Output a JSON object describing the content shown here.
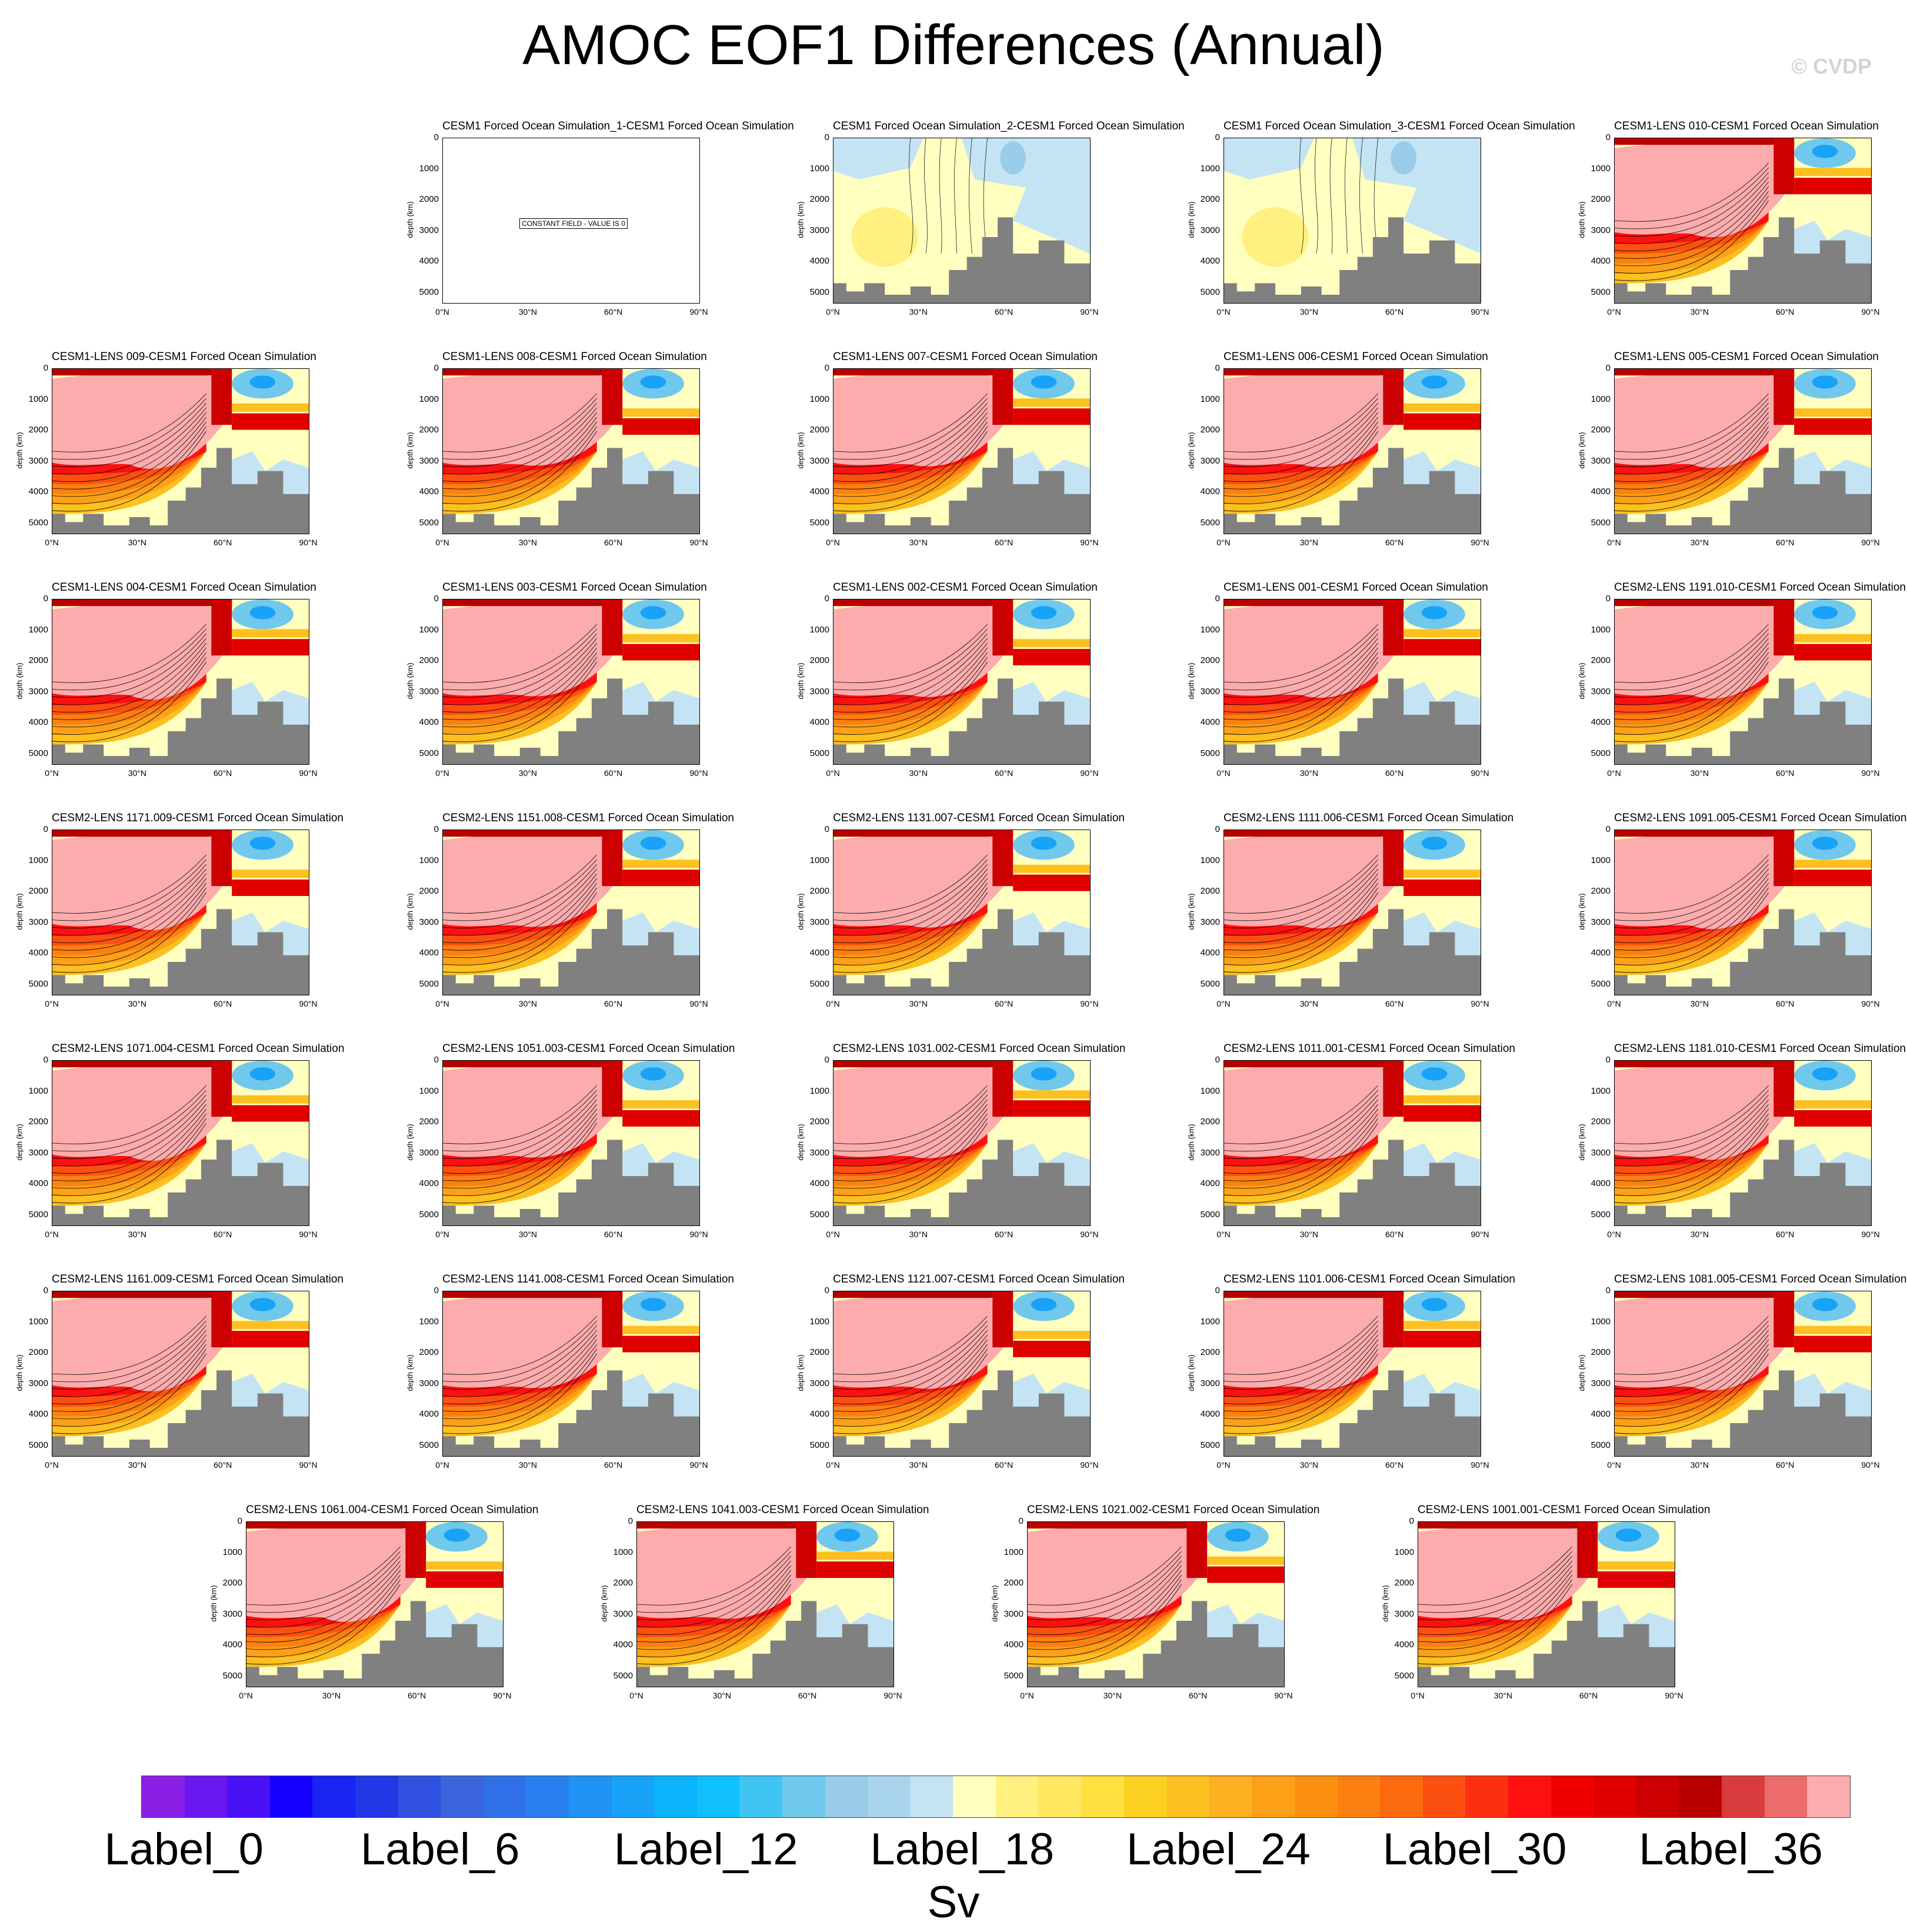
{
  "title": "AMOC EOF1 Differences (Annual)",
  "watermark": "© CVDP",
  "chart_data": {
    "type": "contour-panels",
    "ylabel": "depth (km)",
    "y_ticks": [
      "0",
      "1000",
      "2000",
      "3000",
      "4000",
      "5000"
    ],
    "x_ticks": [
      "0°N",
      "30°N",
      "60°N",
      "90°N"
    ],
    "constant_field_note": "CONSTANT FIELD - VALUE IS 0",
    "panels": [
      {
        "title": "CESM1 Forced Ocean Simulation_1-CESM1 Forced Ocean Simulation",
        "kind": "constant"
      },
      {
        "title": "CESM1 Forced Ocean Simulation_2-CESM1 Forced Ocean Simulation",
        "kind": "weak"
      },
      {
        "title": "CESM1 Forced Ocean Simulation_3-CESM1 Forced Ocean Simulation",
        "kind": "weak"
      },
      {
        "title": "CESM1-LENS 010-CESM1 Forced Ocean Simulation",
        "kind": "strong"
      },
      {
        "title": "CESM1-LENS 009-CESM1 Forced Ocean Simulation",
        "kind": "strong"
      },
      {
        "title": "CESM1-LENS 008-CESM1 Forced Ocean Simulation",
        "kind": "strong"
      },
      {
        "title": "CESM1-LENS 007-CESM1 Forced Ocean Simulation",
        "kind": "strong"
      },
      {
        "title": "CESM1-LENS 006-CESM1 Forced Ocean Simulation",
        "kind": "strong"
      },
      {
        "title": "CESM1-LENS 005-CESM1 Forced Ocean Simulation",
        "kind": "strong"
      },
      {
        "title": "CESM1-LENS 004-CESM1 Forced Ocean Simulation",
        "kind": "strong"
      },
      {
        "title": "CESM1-LENS 003-CESM1 Forced Ocean Simulation",
        "kind": "strong"
      },
      {
        "title": "CESM1-LENS 002-CESM1 Forced Ocean Simulation",
        "kind": "strong"
      },
      {
        "title": "CESM1-LENS 001-CESM1 Forced Ocean Simulation",
        "kind": "strong"
      },
      {
        "title": "CESM2-LENS 1191.010-CESM1 Forced Ocean Simulation",
        "kind": "strong"
      },
      {
        "title": "CESM2-LENS 1171.009-CESM1 Forced Ocean Simulation",
        "kind": "strong"
      },
      {
        "title": "CESM2-LENS 1151.008-CESM1 Forced Ocean Simulation",
        "kind": "strong"
      },
      {
        "title": "CESM2-LENS 1131.007-CESM1 Forced Ocean Simulation",
        "kind": "strong"
      },
      {
        "title": "CESM2-LENS 1111.006-CESM1 Forced Ocean Simulation",
        "kind": "strong"
      },
      {
        "title": "CESM2-LENS 1091.005-CESM1 Forced Ocean Simulation",
        "kind": "strong"
      },
      {
        "title": "CESM2-LENS 1071.004-CESM1 Forced Ocean Simulation",
        "kind": "strong"
      },
      {
        "title": "CESM2-LENS 1051.003-CESM1 Forced Ocean Simulation",
        "kind": "strong"
      },
      {
        "title": "CESM2-LENS 1031.002-CESM1 Forced Ocean Simulation",
        "kind": "strong"
      },
      {
        "title": "CESM2-LENS 1011.001-CESM1 Forced Ocean Simulation",
        "kind": "strong"
      },
      {
        "title": "CESM2-LENS 1181.010-CESM1 Forced Ocean Simulation",
        "kind": "strong"
      },
      {
        "title": "CESM2-LENS 1161.009-CESM1 Forced Ocean Simulation",
        "kind": "strong"
      },
      {
        "title": "CESM2-LENS 1141.008-CESM1 Forced Ocean Simulation",
        "kind": "strong"
      },
      {
        "title": "CESM2-LENS 1121.007-CESM1 Forced Ocean Simulation",
        "kind": "strong"
      },
      {
        "title": "CESM2-LENS 1101.006-CESM1 Forced Ocean Simulation",
        "kind": "strong"
      },
      {
        "title": "CESM2-LENS 1081.005-CESM1 Forced Ocean Simulation",
        "kind": "strong"
      },
      {
        "title": "CESM2-LENS 1061.004-CESM1 Forced Ocean Simulation",
        "kind": "strong"
      },
      {
        "title": "CESM2-LENS 1041.003-CESM1 Forced Ocean Simulation",
        "kind": "strong"
      },
      {
        "title": "CESM2-LENS 1021.002-CESM1 Forced Ocean Simulation",
        "kind": "strong"
      },
      {
        "title": "CESM2-LENS 1001.001-CESM1 Forced Ocean Simulation",
        "kind": "strong"
      }
    ],
    "colorbar": {
      "units": "Sv",
      "labels": [
        "Label_0",
        "Label_6",
        "Label_12",
        "Label_18",
        "Label_24",
        "Label_30",
        "Label_36"
      ],
      "label_indices": [
        0,
        6,
        12,
        18,
        24,
        30,
        36
      ],
      "colors": [
        "#8a20e6",
        "#6a18f0",
        "#4a10f6",
        "#1400ff",
        "#1a24f0",
        "#2238e6",
        "#3050e0",
        "#3a64dc",
        "#3070e6",
        "#2880ee",
        "#2092f4",
        "#18a2f8",
        "#0cb4fc",
        "#10c0fc",
        "#40c4f4",
        "#70c8ec",
        "#98cce8",
        "#a8d4ec",
        "#c4e4f4",
        "#ffffc0",
        "#fff080",
        "#ffe860",
        "#ffe040",
        "#fcd020",
        "#fcc020",
        "#fcb020",
        "#fca018",
        "#fc9010",
        "#fc8010",
        "#fc6a10",
        "#fc5010",
        "#fc3010",
        "#fc1010",
        "#f00000",
        "#e00000",
        "#cc0000",
        "#b80000",
        "#d83c3c",
        "#ec6c6c",
        "#fcacac"
      ]
    }
  }
}
